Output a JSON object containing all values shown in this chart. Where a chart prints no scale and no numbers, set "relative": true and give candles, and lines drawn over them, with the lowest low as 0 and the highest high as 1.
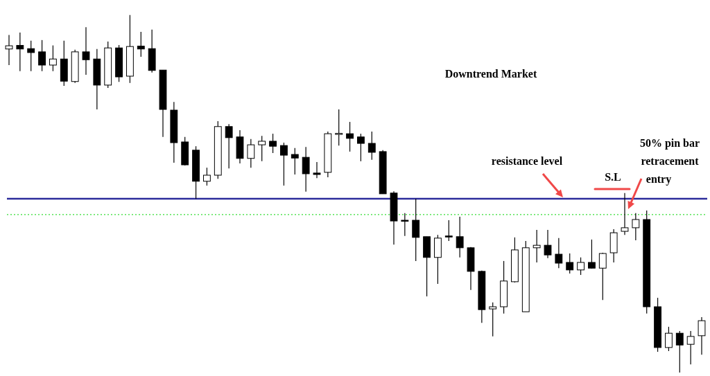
{
  "chart_data": {
    "type": "candlestick",
    "title": "Downtrend Market",
    "relative": true,
    "categories": [
      null,
      null,
      null,
      null,
      null,
      null,
      null,
      null,
      null,
      null,
      null,
      null,
      null,
      null,
      null,
      null,
      null,
      null,
      null,
      null,
      null,
      null,
      null,
      null,
      null,
      null,
      null,
      null,
      null,
      null,
      null,
      null,
      null,
      null,
      null,
      null,
      null,
      null,
      null,
      null,
      null,
      null,
      null,
      null,
      null,
      null,
      null,
      null,
      null,
      null,
      null,
      null,
      null,
      null,
      null,
      null,
      null,
      null,
      null,
      null,
      null,
      null,
      null,
      null
    ],
    "ohlc": [
      [
        0.905,
        0.944,
        0.86,
        0.914
      ],
      [
        0.915,
        0.951,
        0.843,
        0.905
      ],
      [
        0.906,
        0.928,
        0.843,
        0.895
      ],
      [
        0.897,
        0.93,
        0.843,
        0.86
      ],
      [
        0.86,
        0.915,
        0.843,
        0.877
      ],
      [
        0.877,
        0.928,
        0.802,
        0.815
      ],
      [
        0.814,
        0.903,
        0.81,
        0.897
      ],
      [
        0.897,
        0.966,
        0.833,
        0.875
      ],
      [
        0.877,
        0.905,
        0.736,
        0.804
      ],
      [
        0.804,
        0.926,
        0.796,
        0.908
      ],
      [
        0.908,
        0.916,
        0.813,
        0.827
      ],
      [
        0.829,
        1,
        0.81,
        0.912
      ],
      [
        0.913,
        0.953,
        0.883,
        0.905
      ],
      [
        0.906,
        0.959,
        0.839,
        0.845
      ],
      [
        0.846,
        0.846,
        0.659,
        0.736
      ],
      [
        0.734,
        0.757,
        0.587,
        0.643
      ],
      [
        0.645,
        0.659,
        0.579,
        0.581
      ],
      [
        0.622,
        0.633,
        0.486,
        0.535
      ],
      [
        0.535,
        0.573,
        0.523,
        0.552
      ],
      [
        0.552,
        0.703,
        0.542,
        0.688
      ],
      [
        0.688,
        0.695,
        0.571,
        0.657
      ],
      [
        0.659,
        0.678,
        0.585,
        0.599
      ],
      [
        0.599,
        0.653,
        0.573,
        0.637
      ],
      [
        0.637,
        0.662,
        0.591,
        0.647
      ],
      [
        0.647,
        0.668,
        0.614,
        0.633
      ],
      [
        0.635,
        0.643,
        0.523,
        0.608
      ],
      [
        0.61,
        0.628,
        0.554,
        0.6
      ],
      [
        0.602,
        0.631,
        0.506,
        0.556
      ],
      [
        0.558,
        0.589,
        0.544,
        0.554
      ],
      [
        0.56,
        0.674,
        0.546,
        0.668
      ],
      [
        0.668,
        0.736,
        0.635,
        0.669
      ],
      [
        0.668,
        0.701,
        0.618,
        0.655
      ],
      [
        0.659,
        0.668,
        0.591,
        0.641
      ],
      [
        0.641,
        0.674,
        0.595,
        0.616
      ],
      [
        0.618,
        0.622,
        0.5,
        0.5
      ],
      [
        0.502,
        0.507,
        0.358,
        0.424
      ],
      [
        0.426,
        0.446,
        0.382,
        0.424
      ],
      [
        0.426,
        0.486,
        0.312,
        0.378
      ],
      [
        0.38,
        0.38,
        0.213,
        0.322
      ],
      [
        0.322,
        0.385,
        0.248,
        0.376
      ],
      [
        0.382,
        0.426,
        0.368,
        0.38
      ],
      [
        0.38,
        0.436,
        0.322,
        0.349
      ],
      [
        0.349,
        0.351,
        0.231,
        0.283
      ],
      [
        0.283,
        0.285,
        0.139,
        0.176
      ],
      [
        0.178,
        0.196,
        0.101,
        0.184
      ],
      [
        0.184,
        0.312,
        0.165,
        0.256
      ],
      [
        0.254,
        0.378,
        0.252,
        0.343
      ],
      [
        0.17,
        0.368,
        0.17,
        0.349
      ],
      [
        0.349,
        0.399,
        0.308,
        0.356
      ],
      [
        0.356,
        0.399,
        0.32,
        0.329
      ],
      [
        0.331,
        0.376,
        0.292,
        0.306
      ],
      [
        0.308,
        0.333,
        0.277,
        0.287
      ],
      [
        0.287,
        0.322,
        0.273,
        0.308
      ],
      [
        0.308,
        0.372,
        0.291,
        0.292
      ],
      [
        0.292,
        0.335,
        0.203,
        0.333
      ],
      [
        0.335,
        0.401,
        0.308,
        0.391
      ],
      [
        0.395,
        0.502,
        0.385,
        0.405
      ],
      [
        0.405,
        0.446,
        0.37,
        0.428
      ],
      [
        0.428,
        0.453,
        0.165,
        0.184
      ],
      [
        0.184,
        0.209,
        0.058,
        0.07
      ],
      [
        0.07,
        0.128,
        0.06,
        0.11
      ],
      [
        0.11,
        0.116,
        0,
        0.077
      ],
      [
        0.079,
        0.116,
        0.023,
        0.101
      ],
      [
        0.103,
        0.155,
        0.05,
        0.145
      ]
    ],
    "ref_lines": [
      {
        "axis": "y",
        "value": 0.486,
        "label": "resistance level",
        "color": "#2b2b9b",
        "line_style": "solid"
      },
      {
        "axis": "y",
        "value": 0.442,
        "color": "#33dd33",
        "line_style": "dotted"
      }
    ],
    "annotations": [
      "S.L",
      "50% pin bar retracement entry"
    ]
  }
}
